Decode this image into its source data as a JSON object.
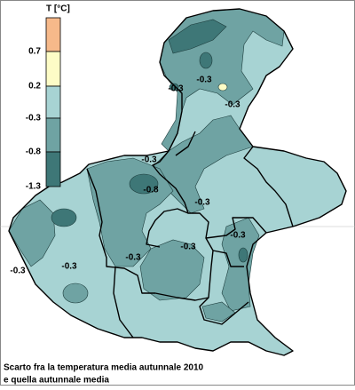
{
  "legend": {
    "title": "T [°C]",
    "labels": [
      "0.7",
      "0.2",
      "-0.3",
      "-0.8",
      "-1.3"
    ],
    "colors": [
      "#f6b98a",
      "#fdfcc6",
      "#a7d3d3",
      "#6fa3a3",
      "#3e7777"
    ]
  },
  "contour_labels": [
    "-0.3",
    "-0.3",
    "-0.3",
    "-0.3",
    "-0.8",
    "-0.3",
    "-0.3",
    "-0.3",
    "-0.3",
    "-0.3",
    "-0.3"
  ],
  "caption": [
    "Scarto fra la temperatura media autunnale 2010",
    "e quella autunnale media"
  ]
}
